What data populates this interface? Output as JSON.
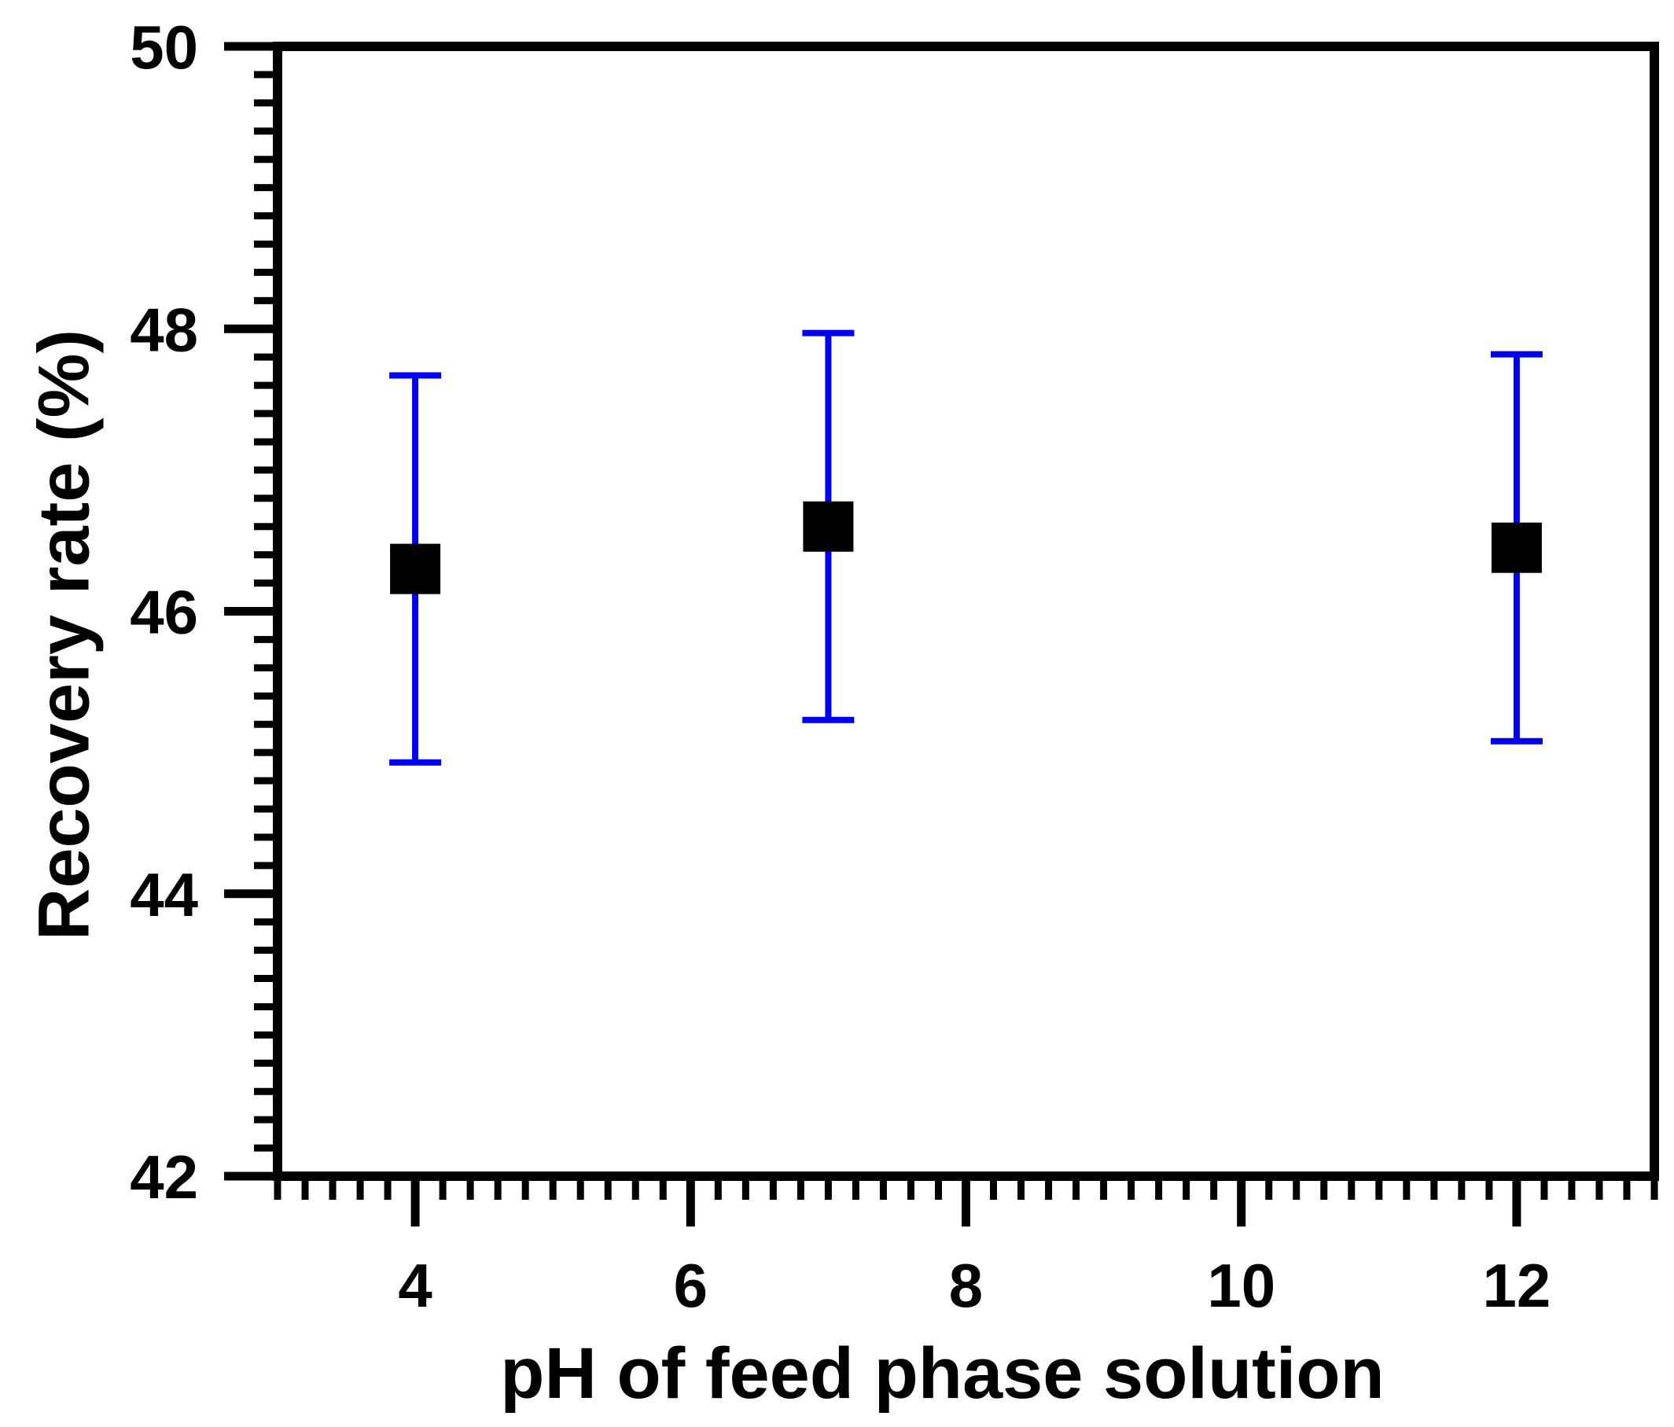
{
  "chart_data": {
    "type": "scatter",
    "title": "",
    "xlabel": "pH of feed phase solution",
    "ylabel": "Recovery rate (%)",
    "xlim": [
      3,
      13
    ],
    "ylim": [
      42,
      50
    ],
    "xticks": [
      4,
      6,
      8,
      10,
      12
    ],
    "xtick_labels": [
      "4",
      "6",
      "8",
      "10",
      "12"
    ],
    "yticks": [
      42,
      44,
      46,
      48,
      50
    ],
    "ytick_labels": [
      "42",
      "44",
      "46",
      "48",
      "50"
    ],
    "x_minor_step": 0.2,
    "y_minor_step": 0.2,
    "grid": false,
    "series": [
      {
        "name": "Recovery rate",
        "marker": "square",
        "marker_color": "#000000",
        "errorbar_color": "#0000ee",
        "x": [
          4,
          7,
          12
        ],
        "y": [
          46.3,
          46.6,
          46.45
        ],
        "err": [
          1.37,
          1.37,
          1.37
        ]
      }
    ]
  }
}
